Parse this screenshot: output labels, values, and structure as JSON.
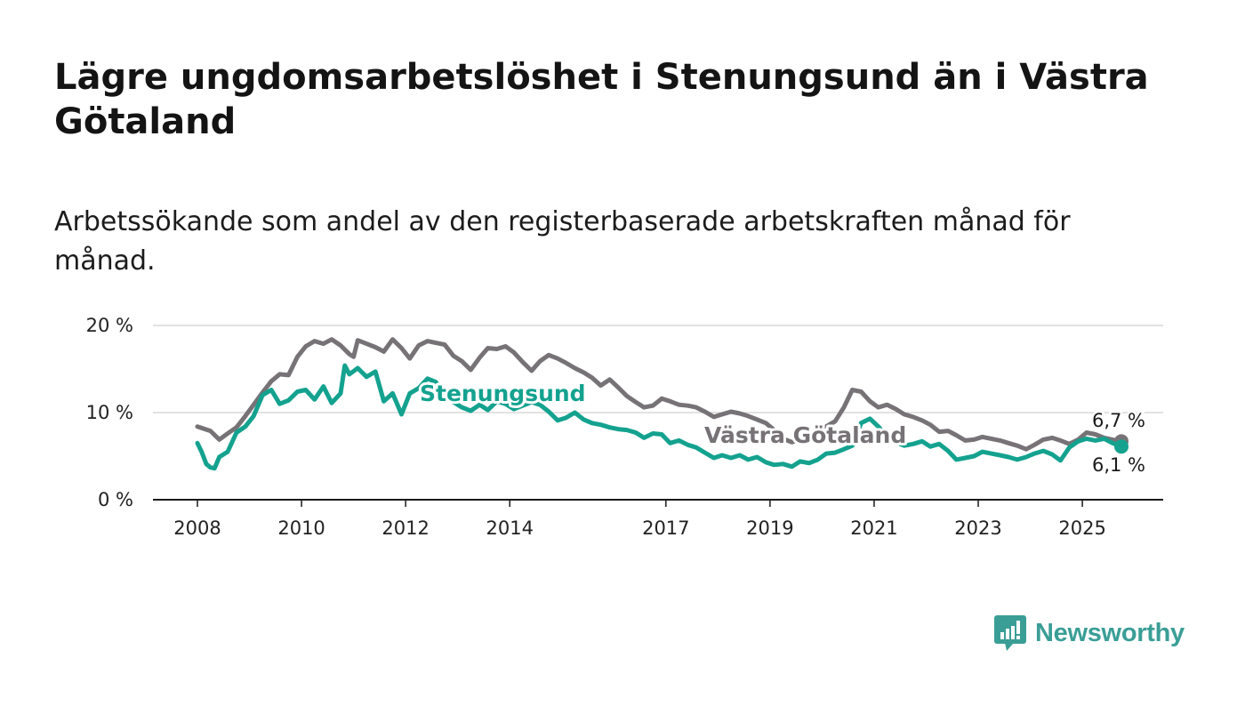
{
  "title": "Lägre ungdomsarbetslöshet i Stenungsund än i Västra Götaland",
  "subtitle": "Arbetssökande som andel av den registerbaserade arbetskraften månad för månad.",
  "brand": {
    "name": "Newsworthy",
    "color": "#3a9e96"
  },
  "chart_data": {
    "type": "line",
    "title": "Lägre ungdomsarbetslöshet i Stenungsund än i Västra Götaland",
    "subtitle": "Arbetssökande som andel av den registerbaserade arbetskraften månad för månad.",
    "ylim": [
      0,
      20
    ],
    "y_ticks": [
      0,
      10,
      20
    ],
    "y_tick_labels": [
      "0 %",
      "10 %",
      "20 %"
    ],
    "x_ticks": [
      2008,
      2010,
      2012,
      2014,
      2017,
      2019,
      2021,
      2023,
      2025
    ],
    "x_tick_labels": [
      "2008",
      "2010",
      "2012",
      "2014",
      "2017",
      "2019",
      "2021",
      "2023",
      "2025"
    ],
    "grid": "horizontal",
    "legend": "inline labels",
    "end_labels": {
      "Västra Götaland": "6,7 %",
      "Stenungsund": "6,1 %"
    },
    "series": [
      {
        "name": "Västra Götaland",
        "color": "#767276",
        "points": [
          [
            2008.0,
            8.4
          ],
          [
            2008.25,
            7.9
          ],
          [
            2008.42,
            6.9
          ],
          [
            2008.58,
            7.6
          ],
          [
            2008.75,
            8.3
          ],
          [
            2008.92,
            9.6
          ],
          [
            2009.08,
            10.9
          ],
          [
            2009.25,
            12.3
          ],
          [
            2009.42,
            13.6
          ],
          [
            2009.58,
            14.4
          ],
          [
            2009.75,
            14.3
          ],
          [
            2009.92,
            16.4
          ],
          [
            2010.08,
            17.6
          ],
          [
            2010.25,
            18.2
          ],
          [
            2010.42,
            17.9
          ],
          [
            2010.58,
            18.4
          ],
          [
            2010.75,
            17.7
          ],
          [
            2010.92,
            16.7
          ],
          [
            2011.0,
            16.4
          ],
          [
            2011.08,
            18.3
          ],
          [
            2011.25,
            17.9
          ],
          [
            2011.42,
            17.5
          ],
          [
            2011.58,
            17.0
          ],
          [
            2011.75,
            18.4
          ],
          [
            2011.92,
            17.4
          ],
          [
            2012.08,
            16.2
          ],
          [
            2012.25,
            17.7
          ],
          [
            2012.42,
            18.2
          ],
          [
            2012.58,
            18.0
          ],
          [
            2012.75,
            17.8
          ],
          [
            2012.92,
            16.5
          ],
          [
            2013.08,
            15.9
          ],
          [
            2013.25,
            14.9
          ],
          [
            2013.42,
            16.3
          ],
          [
            2013.58,
            17.4
          ],
          [
            2013.75,
            17.3
          ],
          [
            2013.92,
            17.6
          ],
          [
            2014.08,
            16.9
          ],
          [
            2014.25,
            15.8
          ],
          [
            2014.42,
            14.8
          ],
          [
            2014.58,
            15.9
          ],
          [
            2014.75,
            16.6
          ],
          [
            2014.92,
            16.2
          ],
          [
            2015.08,
            15.7
          ],
          [
            2015.25,
            15.1
          ],
          [
            2015.42,
            14.6
          ],
          [
            2015.58,
            14.0
          ],
          [
            2015.75,
            13.1
          ],
          [
            2015.92,
            13.8
          ],
          [
            2016.08,
            12.9
          ],
          [
            2016.25,
            11.9
          ],
          [
            2016.42,
            11.2
          ],
          [
            2016.58,
            10.6
          ],
          [
            2016.75,
            10.8
          ],
          [
            2016.92,
            11.6
          ],
          [
            2017.08,
            11.3
          ],
          [
            2017.25,
            10.9
          ],
          [
            2017.42,
            10.8
          ],
          [
            2017.58,
            10.6
          ],
          [
            2017.75,
            10.1
          ],
          [
            2017.92,
            9.5
          ],
          [
            2018.08,
            9.8
          ],
          [
            2018.25,
            10.1
          ],
          [
            2018.42,
            9.9
          ],
          [
            2018.58,
            9.6
          ],
          [
            2018.75,
            9.2
          ],
          [
            2018.92,
            8.8
          ],
          [
            2019.08,
            8.0
          ],
          [
            2019.25,
            7.0
          ],
          [
            2019.42,
            6.6
          ],
          [
            2019.58,
            6.9
          ],
          [
            2019.75,
            7.4
          ],
          [
            2019.92,
            8.0
          ],
          [
            2020.08,
            8.4
          ],
          [
            2020.25,
            9.0
          ],
          [
            2020.42,
            10.6
          ],
          [
            2020.58,
            12.6
          ],
          [
            2020.75,
            12.4
          ],
          [
            2020.92,
            11.3
          ],
          [
            2021.08,
            10.6
          ],
          [
            2021.25,
            10.9
          ],
          [
            2021.42,
            10.4
          ],
          [
            2021.58,
            9.8
          ],
          [
            2021.75,
            9.5
          ],
          [
            2021.92,
            9.1
          ],
          [
            2022.08,
            8.6
          ],
          [
            2022.25,
            7.8
          ],
          [
            2022.42,
            7.9
          ],
          [
            2022.58,
            7.4
          ],
          [
            2022.75,
            6.8
          ],
          [
            2022.92,
            6.9
          ],
          [
            2023.08,
            7.2
          ],
          [
            2023.25,
            7.0
          ],
          [
            2023.42,
            6.8
          ],
          [
            2023.58,
            6.5
          ],
          [
            2023.75,
            6.2
          ],
          [
            2023.92,
            5.8
          ],
          [
            2024.08,
            6.3
          ],
          [
            2024.25,
            6.9
          ],
          [
            2024.42,
            7.1
          ],
          [
            2024.58,
            6.8
          ],
          [
            2024.75,
            6.4
          ],
          [
            2024.92,
            6.9
          ],
          [
            2025.08,
            7.7
          ],
          [
            2025.25,
            7.5
          ],
          [
            2025.42,
            7.1
          ],
          [
            2025.58,
            6.9
          ],
          [
            2025.75,
            6.7
          ]
        ]
      },
      {
        "name": "Stenungsund",
        "color": "#14a28f",
        "points": [
          [
            2008.0,
            6.5
          ],
          [
            2008.08,
            5.5
          ],
          [
            2008.17,
            4.1
          ],
          [
            2008.25,
            3.7
          ],
          [
            2008.33,
            3.6
          ],
          [
            2008.42,
            4.9
          ],
          [
            2008.58,
            5.5
          ],
          [
            2008.75,
            7.7
          ],
          [
            2008.92,
            8.4
          ],
          [
            2009.08,
            9.6
          ],
          [
            2009.25,
            12.0
          ],
          [
            2009.42,
            12.6
          ],
          [
            2009.58,
            11.0
          ],
          [
            2009.75,
            11.4
          ],
          [
            2009.92,
            12.4
          ],
          [
            2010.08,
            12.6
          ],
          [
            2010.25,
            11.5
          ],
          [
            2010.42,
            13.0
          ],
          [
            2010.58,
            11.1
          ],
          [
            2010.75,
            12.2
          ],
          [
            2010.83,
            15.4
          ],
          [
            2010.92,
            14.4
          ],
          [
            2011.08,
            15.1
          ],
          [
            2011.25,
            14.1
          ],
          [
            2011.42,
            14.7
          ],
          [
            2011.58,
            11.3
          ],
          [
            2011.75,
            12.2
          ],
          [
            2011.92,
            9.8
          ],
          [
            2012.08,
            12.2
          ],
          [
            2012.25,
            12.8
          ],
          [
            2012.42,
            13.9
          ],
          [
            2012.58,
            13.5
          ],
          [
            2012.75,
            11.8
          ],
          [
            2012.92,
            11.2
          ],
          [
            2013.08,
            10.6
          ],
          [
            2013.25,
            10.2
          ],
          [
            2013.42,
            10.9
          ],
          [
            2013.58,
            10.3
          ],
          [
            2013.75,
            11.3
          ],
          [
            2013.92,
            11.0
          ],
          [
            2014.08,
            10.4
          ],
          [
            2014.25,
            10.8
          ],
          [
            2014.42,
            11.2
          ],
          [
            2014.58,
            10.9
          ],
          [
            2014.75,
            10.1
          ],
          [
            2014.92,
            9.1
          ],
          [
            2015.08,
            9.4
          ],
          [
            2015.25,
            10.0
          ],
          [
            2015.42,
            9.2
          ],
          [
            2015.58,
            8.8
          ],
          [
            2015.75,
            8.6
          ],
          [
            2015.92,
            8.3
          ],
          [
            2016.08,
            8.1
          ],
          [
            2016.25,
            8.0
          ],
          [
            2016.42,
            7.7
          ],
          [
            2016.58,
            7.1
          ],
          [
            2016.75,
            7.6
          ],
          [
            2016.92,
            7.5
          ],
          [
            2017.08,
            6.5
          ],
          [
            2017.25,
            6.8
          ],
          [
            2017.42,
            6.3
          ],
          [
            2017.58,
            6.0
          ],
          [
            2017.75,
            5.4
          ],
          [
            2017.92,
            4.8
          ],
          [
            2018.08,
            5.1
          ],
          [
            2018.25,
            4.8
          ],
          [
            2018.42,
            5.1
          ],
          [
            2018.58,
            4.6
          ],
          [
            2018.75,
            4.9
          ],
          [
            2018.92,
            4.3
          ],
          [
            2019.08,
            4.0
          ],
          [
            2019.25,
            4.1
          ],
          [
            2019.42,
            3.8
          ],
          [
            2019.58,
            4.4
          ],
          [
            2019.75,
            4.2
          ],
          [
            2019.92,
            4.6
          ],
          [
            2020.08,
            5.3
          ],
          [
            2020.25,
            5.4
          ],
          [
            2020.42,
            5.8
          ],
          [
            2020.58,
            6.2
          ],
          [
            2020.75,
            8.8
          ],
          [
            2020.92,
            9.3
          ],
          [
            2021.08,
            8.4
          ],
          [
            2021.25,
            7.3
          ],
          [
            2021.42,
            6.6
          ],
          [
            2021.58,
            6.2
          ],
          [
            2021.75,
            6.4
          ],
          [
            2021.92,
            6.7
          ],
          [
            2022.08,
            6.1
          ],
          [
            2022.25,
            6.4
          ],
          [
            2022.42,
            5.6
          ],
          [
            2022.58,
            4.6
          ],
          [
            2022.75,
            4.8
          ],
          [
            2022.92,
            5.0
          ],
          [
            2023.08,
            5.5
          ],
          [
            2023.25,
            5.3
          ],
          [
            2023.42,
            5.1
          ],
          [
            2023.58,
            4.9
          ],
          [
            2023.75,
            4.6
          ],
          [
            2023.92,
            4.9
          ],
          [
            2024.08,
            5.3
          ],
          [
            2024.25,
            5.6
          ],
          [
            2024.42,
            5.2
          ],
          [
            2024.58,
            4.5
          ],
          [
            2024.75,
            6.0
          ],
          [
            2024.92,
            6.7
          ],
          [
            2025.08,
            7.0
          ],
          [
            2025.25,
            6.8
          ],
          [
            2025.42,
            7.0
          ],
          [
            2025.58,
            6.5
          ],
          [
            2025.75,
            6.1
          ]
        ]
      }
    ]
  }
}
